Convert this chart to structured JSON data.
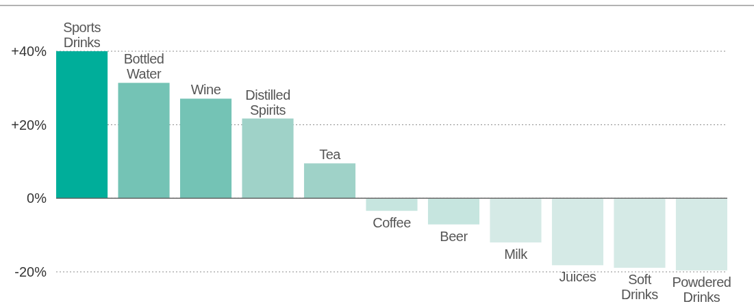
{
  "chart_data": {
    "type": "bar",
    "categories": [
      "Sports Drinks",
      "Bottled Water",
      "Wine",
      "Distilled Spirits",
      "Tea",
      "Coffee",
      "Beer",
      "Milk",
      "Juices",
      "Soft Drinks",
      "Powdered Drinks"
    ],
    "values": [
      40,
      31.4,
      27.1,
      21.7,
      9.5,
      -3.4,
      -7.1,
      -12,
      -18.2,
      -18.9,
      -19.6
    ],
    "colors": [
      "#00ae9a",
      "#74c3b5",
      "#74c3b5",
      "#9fd2c8",
      "#9fd2c8",
      "#c6e5df",
      "#c6e5df",
      "#d5eae6",
      "#d5eae6",
      "#d5eae6",
      "#d5eae6"
    ],
    "ylim": [
      -20,
      40
    ],
    "yticks": [
      {
        "value": 40,
        "label": "+40%"
      },
      {
        "value": 20,
        "label": "+20%"
      },
      {
        "value": 0,
        "label": "0%"
      },
      {
        "value": -20,
        "label": "-20%"
      }
    ],
    "grid": "y"
  }
}
